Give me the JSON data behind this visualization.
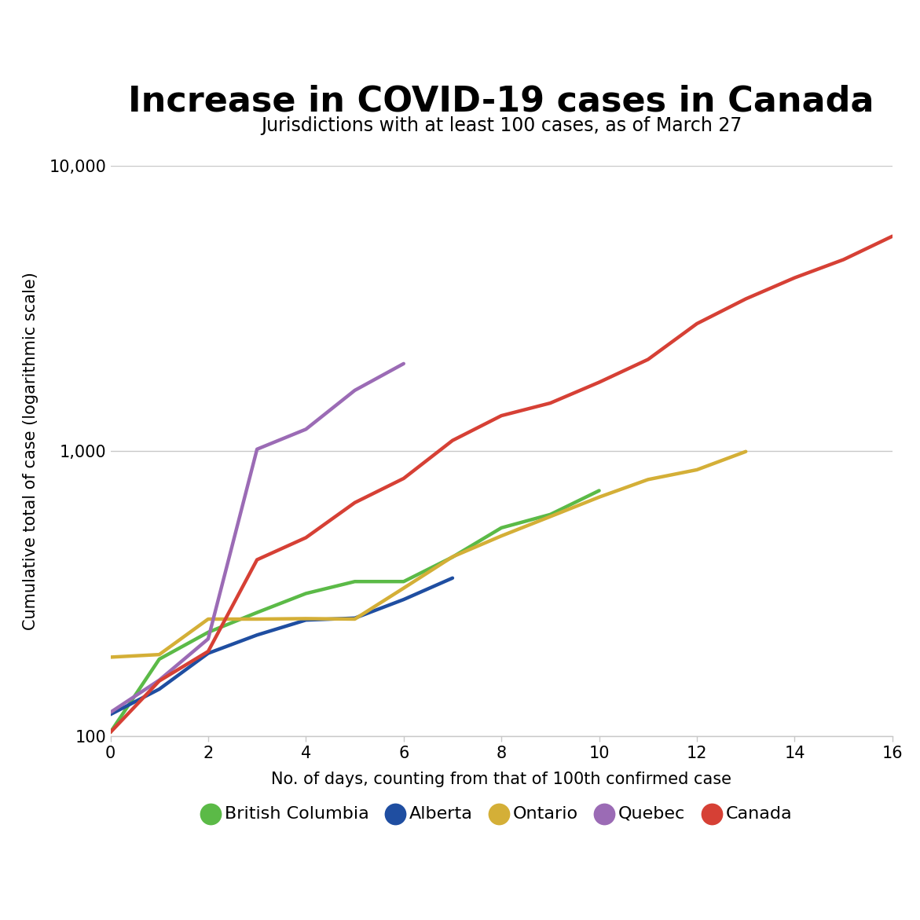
{
  "title": "Increase in COVID-19 cases in Canada",
  "subtitle": "Jurisdictions with at least 100 cases, as of March 27",
  "xlabel": "No. of days, counting from that of 100th confirmed case",
  "ylabel": "Cumulative total of case (logarithmic scale)",
  "series": {
    "British Columbia": {
      "color": "#5bba47",
      "x": [
        0,
        1,
        2,
        3,
        4,
        5,
        6,
        7,
        8,
        9,
        10
      ],
      "y": [
        103,
        186,
        231,
        271,
        316,
        348,
        348,
        424,
        537,
        598,
        725
      ]
    },
    "Alberta": {
      "color": "#1f4ea1",
      "x": [
        0,
        1,
        2,
        3,
        4,
        5,
        6,
        7
      ],
      "y": [
        119,
        146,
        195,
        226,
        255,
        259,
        301,
        358
      ]
    },
    "Ontario": {
      "color": "#d4af37",
      "x": [
        0,
        1,
        2,
        3,
        4,
        5,
        6,
        7,
        8,
        9,
        10,
        11,
        12,
        13
      ],
      "y": [
        189,
        193,
        257,
        257,
        258,
        257,
        330,
        425,
        503,
        588,
        688,
        793,
        858,
        994
      ]
    },
    "Quebec": {
      "color": "#9b6bb5",
      "x": [
        0,
        1,
        2,
        3,
        4,
        5,
        6
      ],
      "y": [
        121,
        157,
        219,
        1013,
        1190,
        1629,
        2021
      ]
    },
    "Canada": {
      "color": "#d64035",
      "x": [
        0,
        1,
        2,
        3,
        4,
        5,
        6,
        7,
        8,
        9,
        10,
        11,
        12,
        13,
        14,
        15,
        16
      ],
      "y": [
        103,
        156,
        198,
        415,
        496,
        658,
        800,
        1087,
        1328,
        1470,
        1739,
        2091,
        2791,
        3409,
        4043,
        4682,
        5655
      ]
    }
  },
  "ylim": [
    100,
    10000
  ],
  "xlim": [
    0,
    16
  ],
  "yticks": [
    100,
    1000,
    10000
  ],
  "ytick_labels": [
    "100",
    "1,000",
    "10,000"
  ],
  "xticks": [
    0,
    2,
    4,
    6,
    8,
    10,
    12,
    14,
    16
  ],
  "background_color": "#ffffff",
  "grid_color": "#c8c8c8",
  "title_fontsize": 32,
  "subtitle_fontsize": 17,
  "axis_label_fontsize": 15,
  "tick_fontsize": 15,
  "legend_fontsize": 16,
  "line_width": 3.2
}
